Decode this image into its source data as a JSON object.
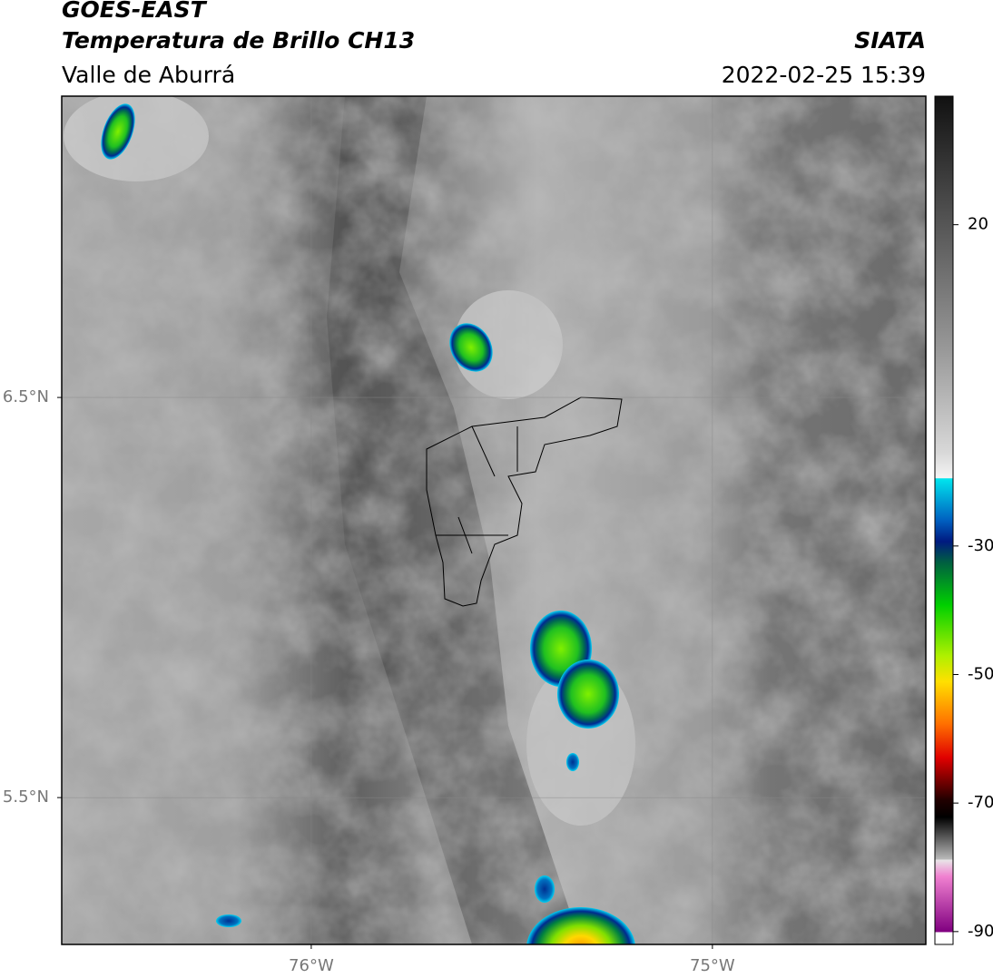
{
  "header": {
    "title": "GOES-EAST",
    "subtitle": "Temperatura de Brillo CH13",
    "region": "Valle de Aburrá",
    "source": "SIATA",
    "datetime": "2022-02-25 15:39"
  },
  "map": {
    "xlim": [
      -76.622,
      -74.468
    ],
    "ylim": [
      5.133,
      7.253
    ],
    "xticks": [
      {
        "value": -76,
        "label": "76°W"
      },
      {
        "value": -75,
        "label": "75°W"
      }
    ],
    "yticks": [
      {
        "value": 6.5,
        "label": "6.5°N"
      },
      {
        "value": 5.5,
        "label": "5.5°N"
      }
    ]
  },
  "colorbar": {
    "lim": [
      -92,
      40
    ],
    "ticks": [
      20,
      -30,
      -50,
      -70,
      -90
    ]
  }
}
